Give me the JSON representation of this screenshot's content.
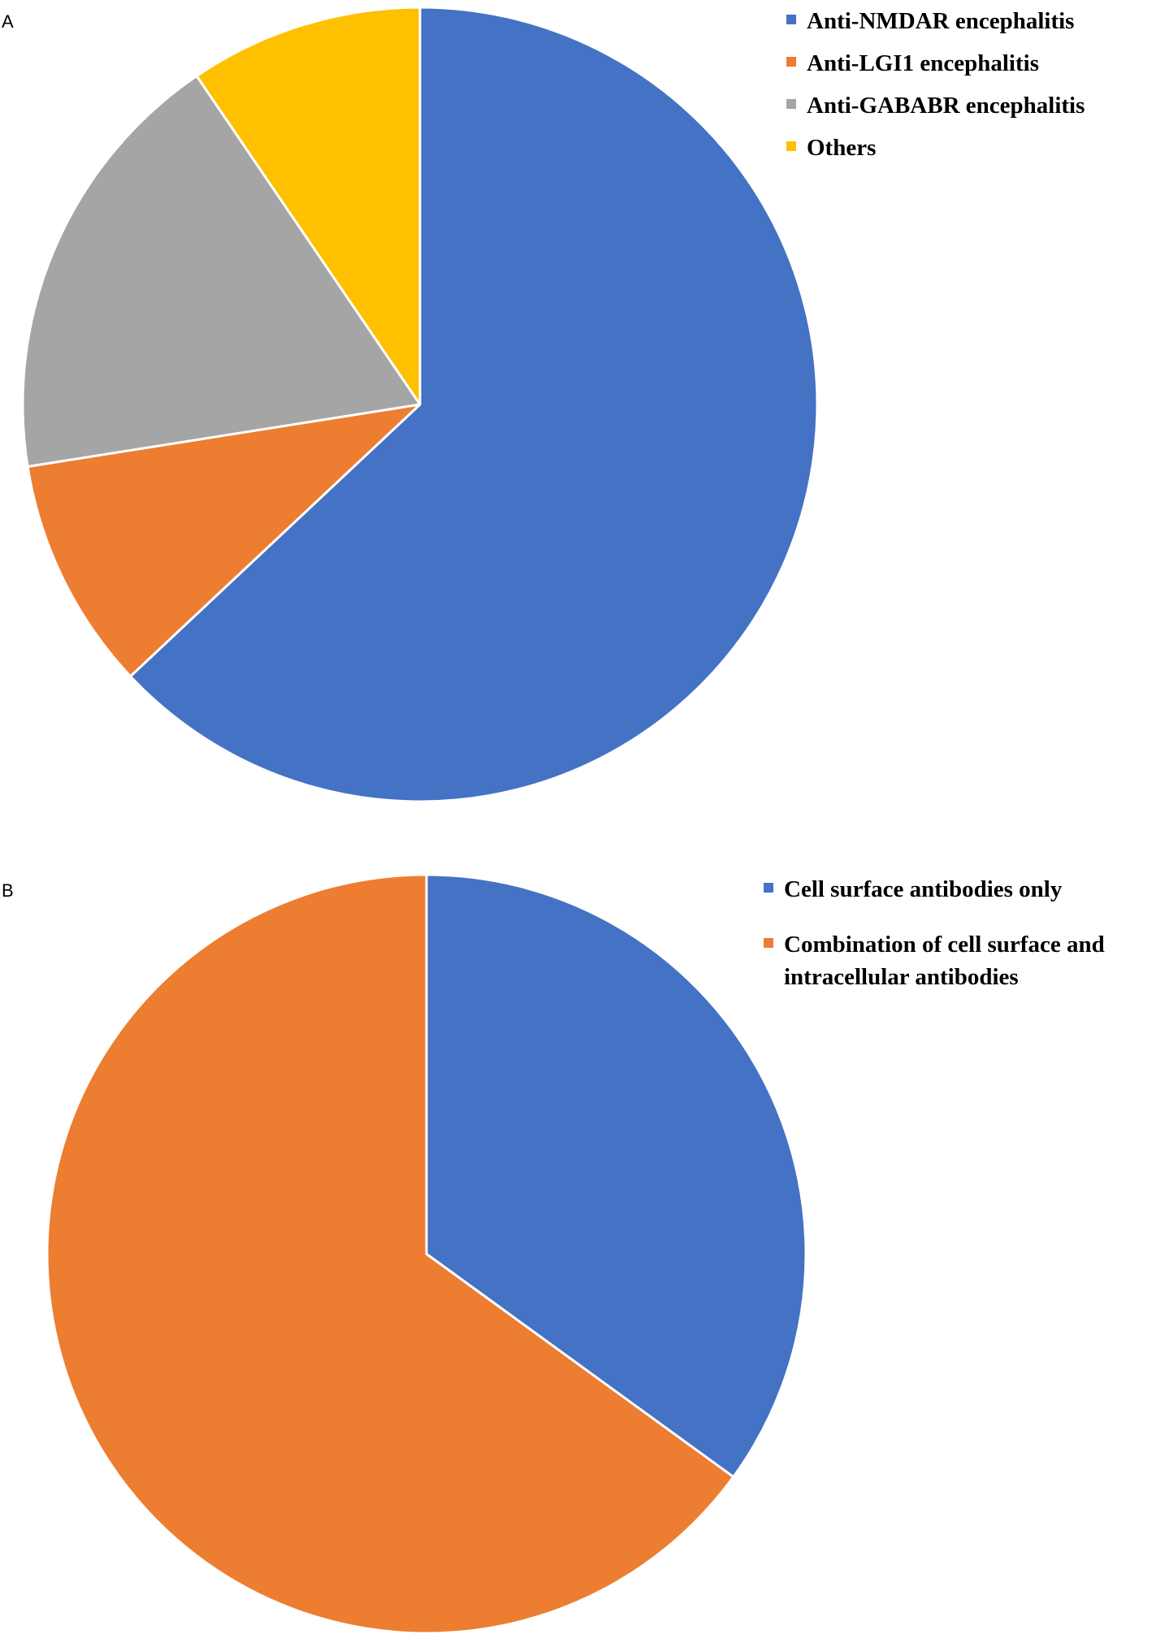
{
  "chart_data": [
    {
      "type": "pie",
      "panel_label": "A",
      "title": "",
      "legend_position": "top-right",
      "start_angle_deg": 0,
      "direction": "clockwise",
      "slices": [
        {
          "label": "Anti-NMDAR encephalitis",
          "value": 63,
          "color": "#4472C4"
        },
        {
          "label": "Anti-LGI1 encephalitis",
          "value": 9.5,
          "color": "#ED7D31"
        },
        {
          "label": "Anti-GABABR encephalitis",
          "value": 18,
          "color": "#A5A5A5"
        },
        {
          "label": "Others",
          "value": 9.5,
          "color": "#FFC000"
        }
      ]
    },
    {
      "type": "pie",
      "panel_label": "B",
      "title": "",
      "legend_position": "top-right",
      "start_angle_deg": 0,
      "direction": "clockwise",
      "slices": [
        {
          "label": "Cell surface antibodies only",
          "value": 35,
          "color": "#4472C4"
        },
        {
          "label": "Combination of cell surface and intracellular antibodies",
          "value": 65,
          "color": "#ED7D31"
        }
      ]
    }
  ]
}
